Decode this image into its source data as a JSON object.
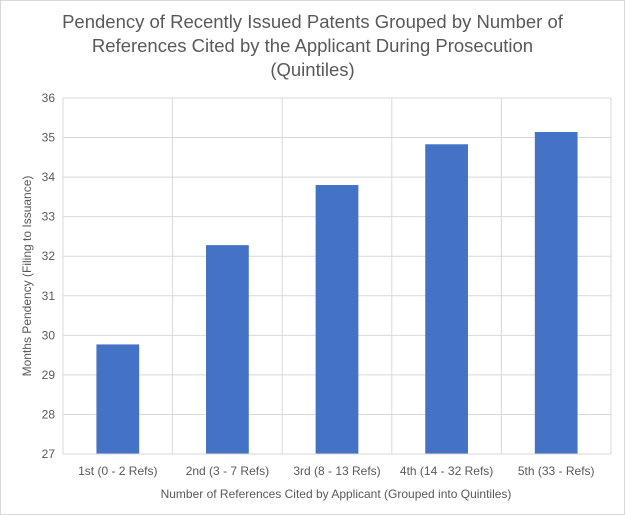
{
  "chart_data": {
    "type": "bar",
    "title_lines": [
      "Pendency of Recently Issued Patents Grouped by Number of",
      "References Cited by the Applicant During Prosecution",
      "(Quintiles)"
    ],
    "categories": [
      "1st (0 - 2 Refs)",
      "2nd (3 - 7 Refs)",
      "3rd (8 - 13 Refs)",
      "4th (14 - 32 Refs)",
      "5th (33 -  Refs)"
    ],
    "values": [
      29.77,
      32.28,
      33.8,
      34.83,
      35.14
    ],
    "xlabel": "Number of References Cited by Applicant (Grouped into Quintiles)",
    "ylabel": "Months Pendency (Filing to Issuance)",
    "ylim": [
      27,
      36
    ],
    "yticks": [
      27,
      28,
      29,
      30,
      31,
      32,
      33,
      34,
      35,
      36
    ],
    "grid": true,
    "colors": {
      "bar": "#4472c4",
      "gridline": "#d9d9d9",
      "text": "#595959"
    }
  }
}
